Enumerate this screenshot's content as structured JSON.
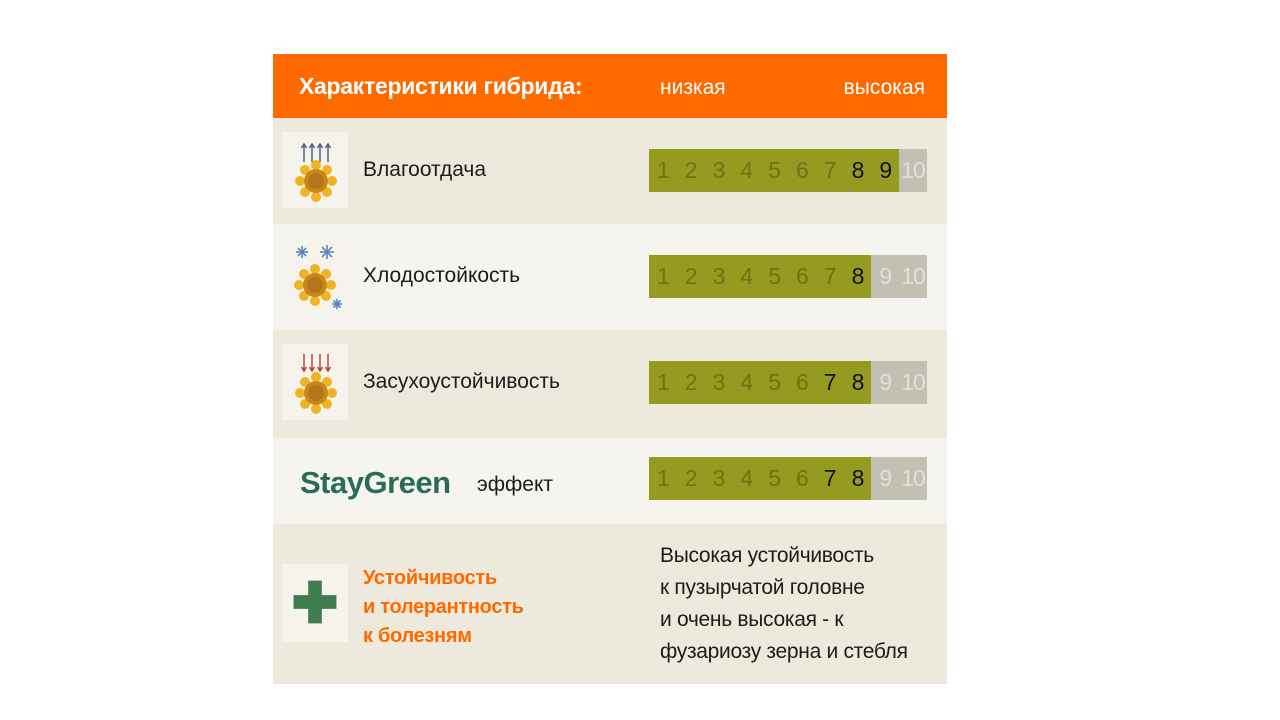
{
  "header": {
    "title": "Характеристики гибрида:",
    "low_label": "низкая",
    "high_label": "высокая"
  },
  "scale_max": 10,
  "traits": [
    {
      "label": "Влагоотдача",
      "icon": "sunflower-evaporation-icon",
      "value": 9,
      "start": 8
    },
    {
      "label": "Хлодостойкость",
      "icon": "sunflower-snowflake-icon",
      "value": 8,
      "start": 8
    },
    {
      "label": "Засухоустойчивость",
      "icon": "sunflower-heat-icon",
      "value": 8,
      "start": 7
    },
    {
      "brand": "StayGreen",
      "label": "эффект",
      "value": 8,
      "start": 7
    }
  ],
  "disease": {
    "icon": "green-cross-icon",
    "label_lines": [
      "Устойчивость",
      "и толерантность",
      "к болезням"
    ],
    "text_lines": [
      "Высокая устойчивость",
      "к пузырчатой головне",
      "и очень высокая - к",
      "фузариозу зерна и стебля"
    ]
  },
  "colors": {
    "header": "#ff6a00",
    "bar_fill": "#959b20",
    "bar_empty": "#c2c0b3",
    "brand": "#2b6b5a",
    "cross": "#3f7d4f"
  }
}
